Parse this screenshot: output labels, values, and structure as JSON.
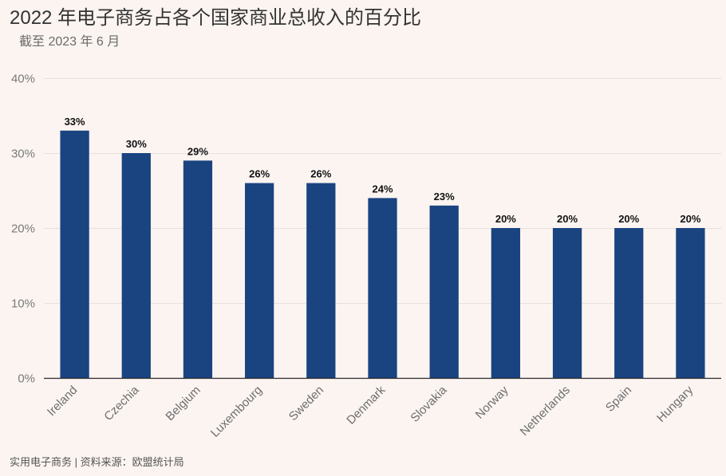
{
  "colors": {
    "background": "#fbf4f1",
    "bar": "#1a4480",
    "gridline": "#e8e1de",
    "axis": "#2b2b2b",
    "value_label": "#111111"
  },
  "footer": "实用电子商务 | 资料来源：欧盟统计局",
  "chart_data": {
    "type": "bar",
    "title": "2022 年电子商务占各个国家商业总收入的百分比",
    "subtitle": "截至 2023 年 6 月",
    "xlabel": "",
    "ylabel": "",
    "categories": [
      "Ireland",
      "Czechia",
      "Belgium",
      "Luxembourg",
      "Sweden",
      "Denmark",
      "Slovakia",
      "Norway",
      "Netherlands",
      "Spain",
      "Hungary"
    ],
    "values": [
      33,
      30,
      29,
      26,
      26,
      24,
      23,
      20,
      20,
      20,
      20
    ],
    "value_labels": [
      "33%",
      "30%",
      "29%",
      "26%",
      "26%",
      "24%",
      "23%",
      "20%",
      "20%",
      "20%",
      "20%"
    ],
    "ylim": [
      0,
      40
    ],
    "yticks": [
      0,
      10,
      20,
      30,
      40
    ],
    "ytick_labels": [
      "0%",
      "10%",
      "20%",
      "30%",
      "40%"
    ],
    "grid": true
  }
}
